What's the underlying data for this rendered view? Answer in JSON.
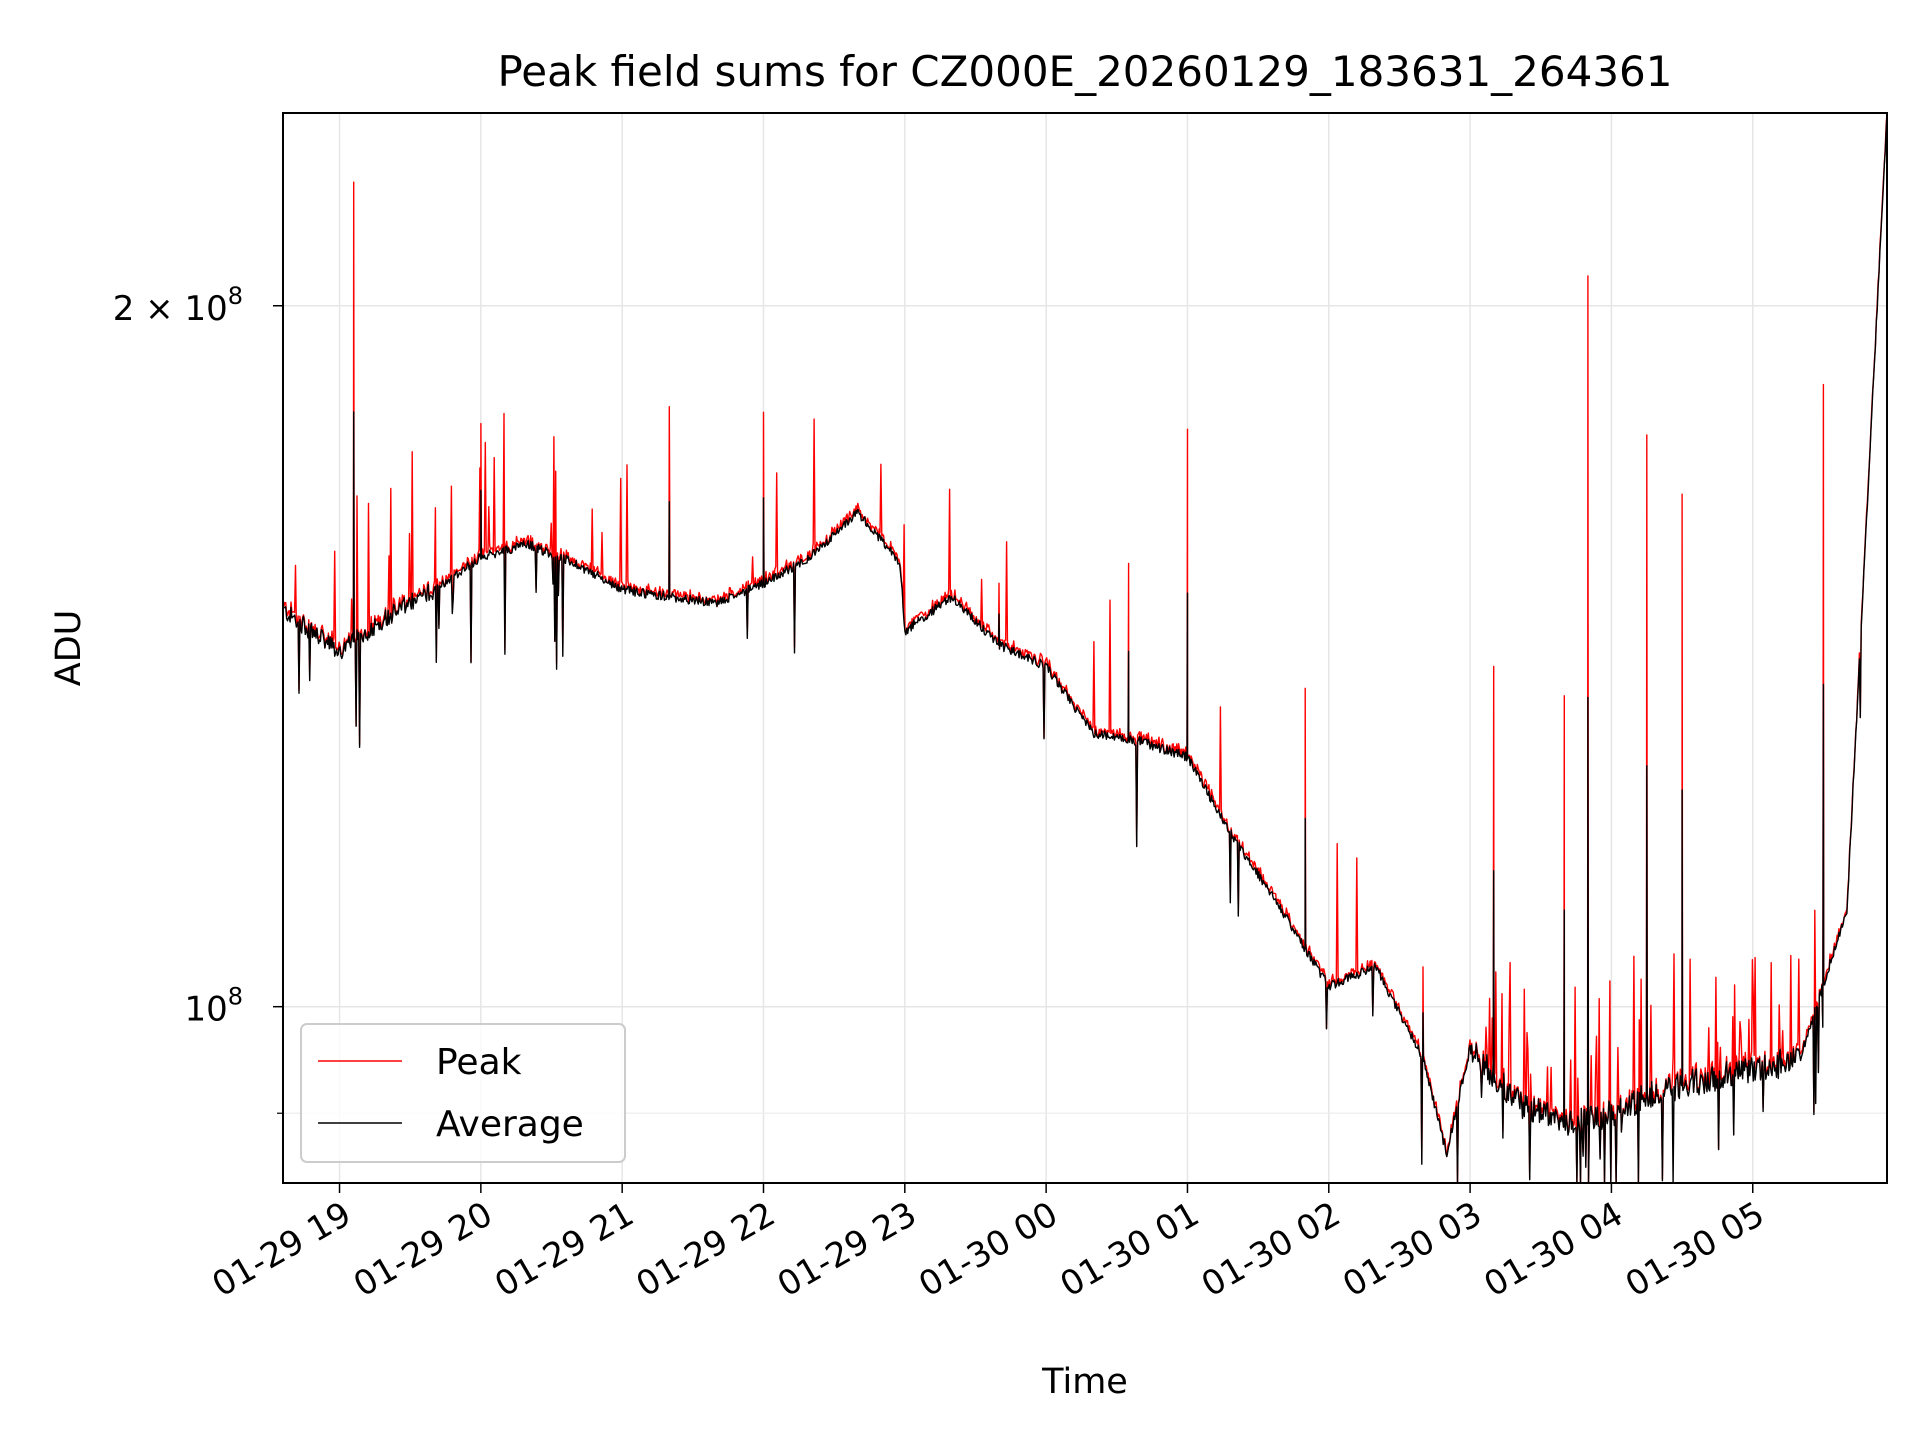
{
  "chart_data": {
    "type": "line",
    "title": "Peak field sums for CZ000E_20260129_183631_264361",
    "xlabel": "Time",
    "ylabel": "ADU",
    "yscale": "log",
    "ylim": [
      84000000,
      242000000
    ],
    "xlim": [
      "2026-01-29 18:36",
      "2026-01-30 05:57"
    ],
    "grid": true,
    "legend_position": "lower-left",
    "x_ticks": [
      "01-29 19",
      "01-29 20",
      "01-29 21",
      "01-29 22",
      "01-29 23",
      "01-30 00",
      "01-30 01",
      "01-30 02",
      "01-30 03",
      "01-30 04",
      "01-30 05"
    ],
    "y_ticks": [
      {
        "label": "2 × 10",
        "exponent": "8",
        "value": 200000000
      },
      {
        "label": "10",
        "exponent": "8",
        "value": 100000000
      }
    ],
    "series": [
      {
        "name": "Peak",
        "color": "#ff0000"
      },
      {
        "name": "Average",
        "color": "#000000"
      }
    ],
    "x": [
      "01-29 18:36",
      "01-29 19:00",
      "01-29 19:20",
      "01-29 19:40",
      "01-29 20:00",
      "01-29 20:20",
      "01-29 20:40",
      "01-29 21:00",
      "01-29 21:20",
      "01-29 21:40",
      "01-29 22:00",
      "01-29 22:20",
      "01-29 22:40",
      "01-29 22:58",
      "01-29 23:00",
      "01-29 23:20",
      "01-29 23:40",
      "01-30 00:00",
      "01-30 00:20",
      "01-30 00:40",
      "01-30 01:00",
      "01-30 01:20",
      "01-30 01:40",
      "01-30 02:00",
      "01-30 02:20",
      "01-30 02:40",
      "01-30 02:50",
      "01-30 03:00",
      "01-30 03:20",
      "01-30 03:40",
      "01-30 04:00",
      "01-30 04:20",
      "01-30 04:40",
      "01-30 05:00",
      "01-30 05:20",
      "01-30 05:40",
      "01-30 05:57"
    ],
    "average": [
      148000000,
      142000000,
      147000000,
      151000000,
      156000000,
      158000000,
      155000000,
      151000000,
      150000000,
      149000000,
      152000000,
      156000000,
      163000000,
      155000000,
      145000000,
      150000000,
      143000000,
      140000000,
      131000000,
      130000000,
      128000000,
      118000000,
      110000000,
      102000000,
      104000000,
      95000000,
      86500000,
      96000000,
      91000000,
      89000000,
      90000000,
      92000000,
      93000000,
      94000000,
      95000000,
      110000000,
      242000000
    ],
    "peak_spikes": [
      {
        "x": "01-29 19:06",
        "value": 226000000
      },
      {
        "x": "01-29 20:00",
        "value": 178000000
      },
      {
        "x": "01-29 21:20",
        "value": 181000000
      },
      {
        "x": "01-29 22:00",
        "value": 180000000
      },
      {
        "x": "01-29 23:40",
        "value": 152000000
      },
      {
        "x": "01-30 00:35",
        "value": 155000000
      },
      {
        "x": "01-30 01:00",
        "value": 177000000
      },
      {
        "x": "01-30 01:50",
        "value": 137000000
      },
      {
        "x": "01-30 02:40",
        "value": 104000000
      },
      {
        "x": "01-30 03:10",
        "value": 140000000
      },
      {
        "x": "01-30 03:40",
        "value": 136000000
      },
      {
        "x": "01-30 03:50",
        "value": 206000000
      },
      {
        "x": "01-30 04:15",
        "value": 176000000
      },
      {
        "x": "01-30 04:30",
        "value": 166000000
      },
      {
        "x": "01-30 05:30",
        "value": 185000000
      }
    ]
  }
}
